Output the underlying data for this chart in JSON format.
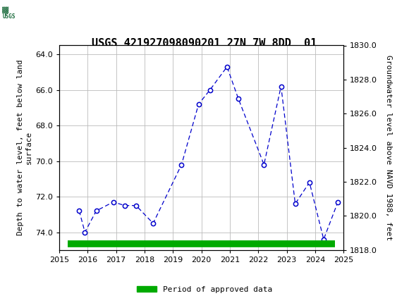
{
  "title": "USGS 421927098090201 27N 7W 8DD  01",
  "ylabel_left": "Depth to water level, feet below land\nsurface",
  "ylabel_right": "Groundwater level above NAVD 1988, feet",
  "years": [
    2015.7,
    2015.9,
    2016.3,
    2016.9,
    2017.3,
    2017.7,
    2018.3,
    2019.3,
    2019.9,
    2020.3,
    2020.9,
    2021.3,
    2022.2,
    2022.8,
    2023.3,
    2023.8,
    2024.3,
    2024.8
  ],
  "depth_values": [
    72.8,
    74.0,
    72.8,
    72.3,
    72.5,
    72.5,
    73.5,
    70.2,
    66.8,
    66.0,
    64.7,
    66.5,
    70.2,
    65.8,
    72.4,
    71.2,
    74.4,
    72.3
  ],
  "ylim_left": [
    75.0,
    63.5
  ],
  "ylim_right": [
    1818.0,
    1830.0
  ],
  "yticks_left": [
    64.0,
    66.0,
    68.0,
    70.0,
    72.0,
    74.0
  ],
  "yticks_right": [
    1818.0,
    1820.0,
    1822.0,
    1824.0,
    1826.0,
    1828.0,
    1830.0
  ],
  "xlim": [
    2015.0,
    2025.0
  ],
  "xticks": [
    2015,
    2016,
    2017,
    2018,
    2019,
    2020,
    2021,
    2022,
    2023,
    2024,
    2025
  ],
  "line_color": "#0000CC",
  "marker_color": "#0000CC",
  "marker_face": "white",
  "bar_color": "#00AA00",
  "bar_xstart": 2015.3,
  "bar_xend": 2024.7,
  "legend_label": "Period of approved data",
  "header_color": "#1a6b3c",
  "background_color": "#ffffff",
  "grid_color": "#bbbbbb",
  "title_fontsize": 11,
  "tick_fontsize": 8,
  "label_fontsize": 8
}
